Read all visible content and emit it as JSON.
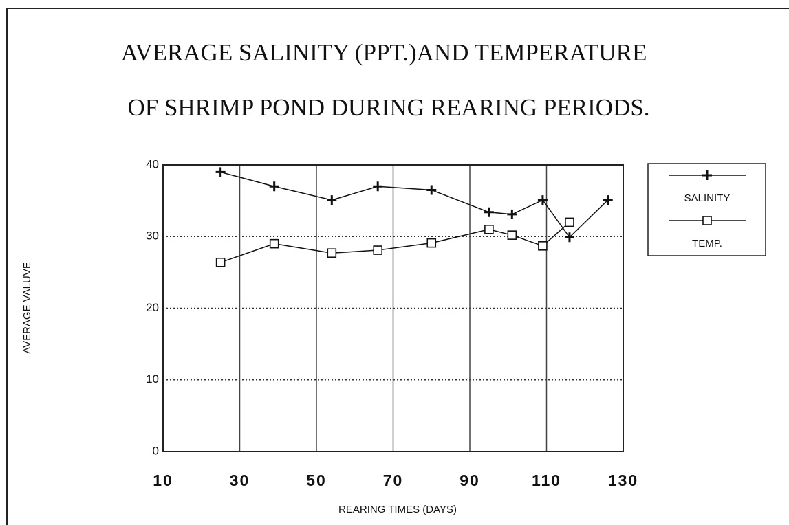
{
  "chart_data": {
    "type": "line",
    "title": [
      "AVERAGE SALINITY (PPT.)AND TEMPERATURE",
      "OF SHRIMP POND DURING REARING PERIODS."
    ],
    "x_label": "REARING TIMES (DAYS)",
    "y_label": "AVERAGE VALUVE",
    "x": [
      25,
      39,
      54,
      66,
      80,
      95,
      101,
      109,
      116,
      126
    ],
    "series": [
      {
        "name": "SALINITY",
        "color": "#111111",
        "marker": "plus",
        "values": [
          39,
          37,
          35.1,
          37,
          36.5,
          33.4,
          33.1,
          35.1,
          29.9,
          35.1
        ]
      },
      {
        "name": "TEMP.",
        "color": "#111111",
        "marker": "square",
        "values": [
          26.4,
          29,
          27.7,
          28.1,
          29.1,
          31,
          30.2,
          28.7,
          32,
          null
        ]
      }
    ],
    "xlim": [
      10,
      130
    ],
    "ylim": [
      0,
      40
    ],
    "xticks": [
      10,
      30,
      50,
      70,
      90,
      110,
      130
    ],
    "yticks": [
      0,
      10,
      20,
      30,
      40
    ],
    "grid": true,
    "legend": "right"
  }
}
